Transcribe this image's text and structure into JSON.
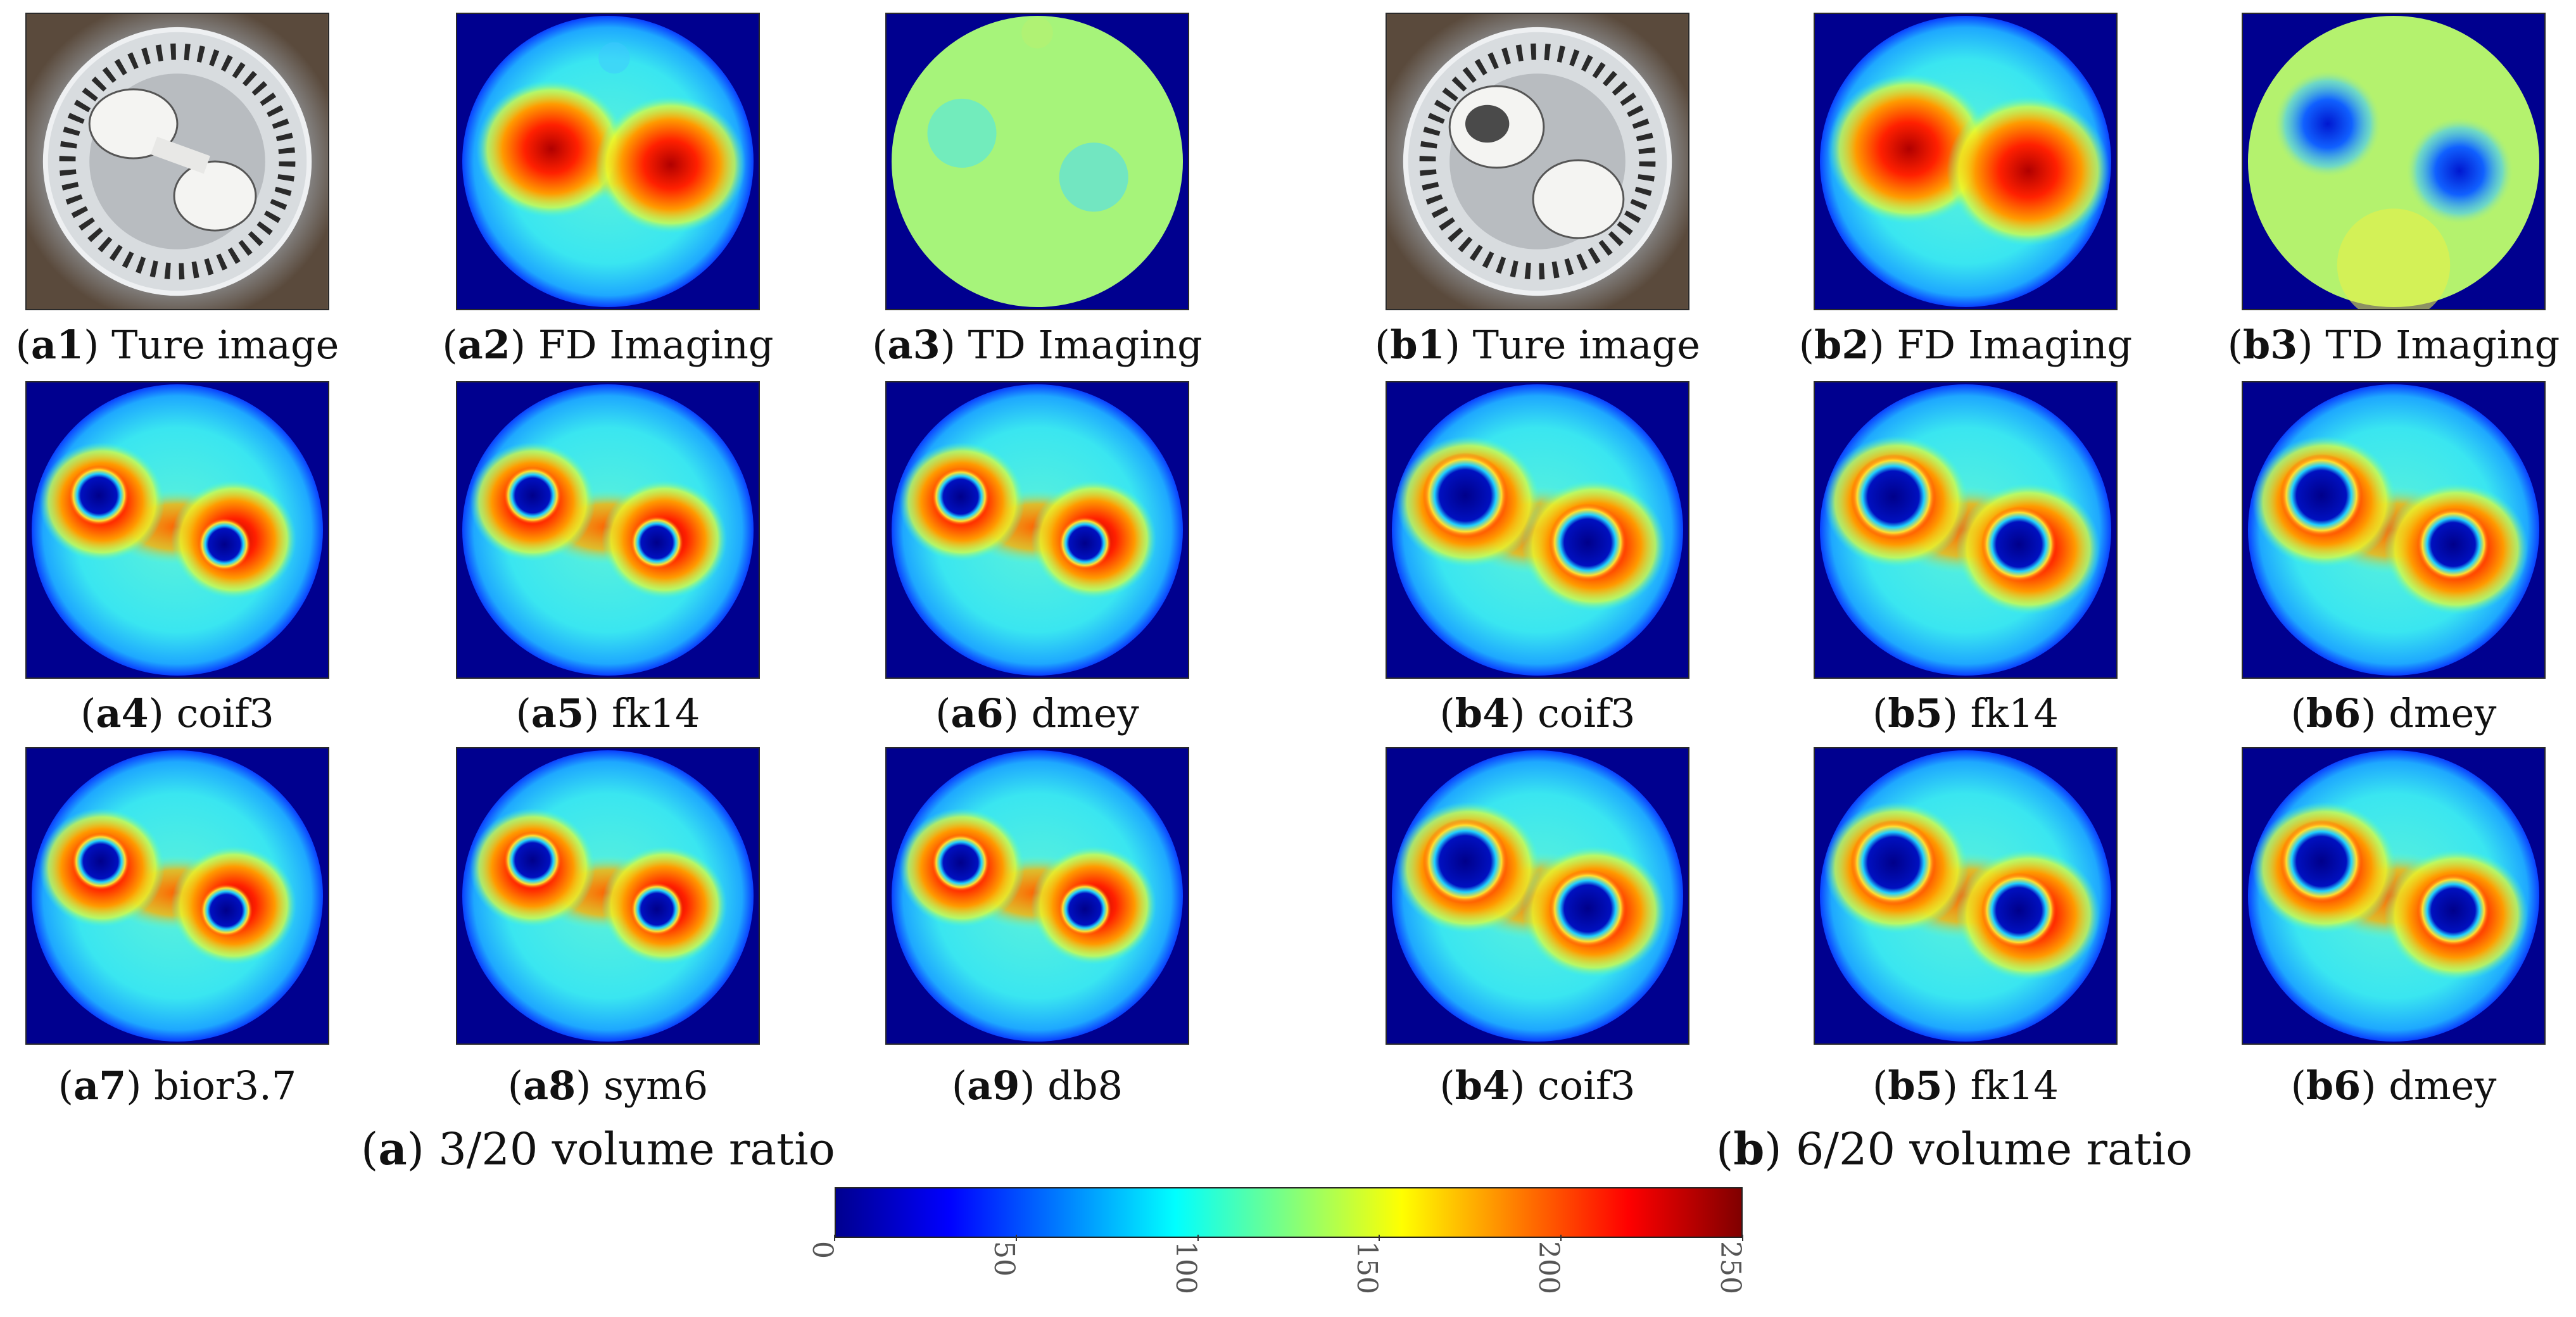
{
  "panels": {
    "a1": {
      "id": "a1",
      "label": "Ture image"
    },
    "a2": {
      "id": "a2",
      "label": "FD Imaging"
    },
    "a3": {
      "id": "a3",
      "label": "TD Imaging"
    },
    "a4": {
      "id": "a4",
      "label": "coif3"
    },
    "a5": {
      "id": "a5",
      "label": "fk14"
    },
    "a6": {
      "id": "a6",
      "label": "dmey"
    },
    "a7": {
      "id": "a7",
      "label": "bior3.7"
    },
    "a8": {
      "id": "a8",
      "label": "sym6"
    },
    "a9": {
      "id": "a9",
      "label": "db8"
    },
    "b1": {
      "id": "b1",
      "label": "Ture image"
    },
    "b2": {
      "id": "b2",
      "label": "FD Imaging"
    },
    "b3": {
      "id": "b3",
      "label": "TD Imaging"
    },
    "b4": {
      "id": "b4",
      "label": "coif3"
    },
    "b5": {
      "id": "b5",
      "label": "fk14"
    },
    "b6": {
      "id": "b6",
      "label": "dmey"
    },
    "b4r3": {
      "id": "b4",
      "label": "coif3"
    },
    "b5r3": {
      "id": "b5",
      "label": "fk14"
    },
    "b6r3": {
      "id": "b6",
      "label": "dmey"
    }
  },
  "groups": {
    "a": {
      "id": "a",
      "label": "3/20 volume ratio"
    },
    "b": {
      "id": "b",
      "label": "6/20 volume ratio"
    }
  },
  "colorbar": {
    "min": 0,
    "max": 250,
    "ticks": [
      "0",
      "50",
      "100",
      "150",
      "200",
      "250"
    ],
    "colormap": "jet"
  },
  "colors": {
    "dark_blue": "#00008f",
    "cyan_bg": "#2fe0f0",
    "red": "#e00000",
    "dark_red": "#8a0000",
    "green_yellow": "#a6f47a"
  }
}
